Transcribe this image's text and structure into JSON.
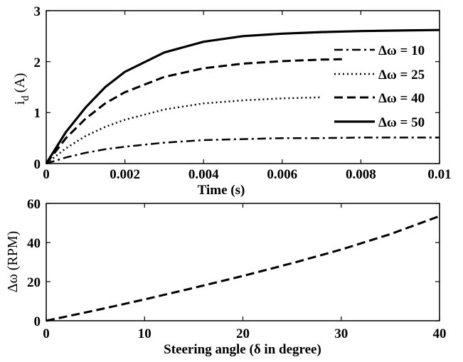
{
  "chart_data": [
    {
      "type": "line",
      "xlabel": "Time (s)",
      "ylabel": "i_d (A)",
      "ylabel_main": "i",
      "ylabel_sub": "d",
      "ylabel_unit": "(A)",
      "xlim": [
        0,
        0.01
      ],
      "ylim": [
        0,
        3
      ],
      "xticks": [
        "0",
        "0.002",
        "0.004",
        "0.006",
        "0.008",
        "0.01"
      ],
      "yticks": [
        "0",
        "1",
        "2",
        "3"
      ],
      "grid": false,
      "legend_position": "right",
      "series": [
        {
          "name": "Δω = 10",
          "style": "dashdot",
          "x": [
            0,
            0.0005,
            0.001,
            0.0015,
            0.002,
            0.003,
            0.004,
            0.005,
            0.006,
            0.007,
            0.008,
            0.009,
            0.01
          ],
          "y": [
            0,
            0.12,
            0.21,
            0.28,
            0.33,
            0.41,
            0.46,
            0.48,
            0.5,
            0.5,
            0.51,
            0.51,
            0.51
          ]
        },
        {
          "name": "Δω = 25",
          "style": "dotted",
          "x": [
            0,
            0.0005,
            0.001,
            0.0015,
            0.002,
            0.003,
            0.004,
            0.005,
            0.006,
            0.007
          ],
          "y": [
            0,
            0.3,
            0.54,
            0.72,
            0.86,
            1.06,
            1.18,
            1.24,
            1.28,
            1.3
          ]
        },
        {
          "name": "Δω = 40",
          "style": "dashed",
          "x": [
            0,
            0.0005,
            0.001,
            0.0015,
            0.002,
            0.003,
            0.004,
            0.005,
            0.006,
            0.007,
            0.0076
          ],
          "y": [
            0,
            0.5,
            0.88,
            1.18,
            1.4,
            1.7,
            1.87,
            1.96,
            2.01,
            2.04,
            2.05
          ]
        },
        {
          "name": "Δω = 50",
          "style": "solid",
          "x": [
            0,
            0.0005,
            0.001,
            0.0015,
            0.002,
            0.003,
            0.004,
            0.005,
            0.006,
            0.007,
            0.008,
            0.009,
            0.01
          ],
          "y": [
            0,
            0.62,
            1.1,
            1.5,
            1.8,
            2.18,
            2.39,
            2.5,
            2.55,
            2.58,
            2.6,
            2.61,
            2.62
          ]
        }
      ]
    },
    {
      "type": "line",
      "xlabel": "Steering angle (δ in degree)",
      "ylabel": "Δω (RPM)",
      "xlim": [
        0,
        40
      ],
      "ylim": [
        0,
        60
      ],
      "xticks": [
        "0",
        "10",
        "20",
        "30",
        "40"
      ],
      "yticks": [
        "0",
        "20",
        "40",
        "60"
      ],
      "grid": false,
      "series": [
        {
          "style": "dashed",
          "x": [
            0,
            5,
            10,
            15,
            20,
            25,
            30,
            35,
            40
          ],
          "y": [
            0,
            5.3,
            10.9,
            16.8,
            22.9,
            29.4,
            36.4,
            44.3,
            53.5
          ]
        }
      ]
    }
  ]
}
